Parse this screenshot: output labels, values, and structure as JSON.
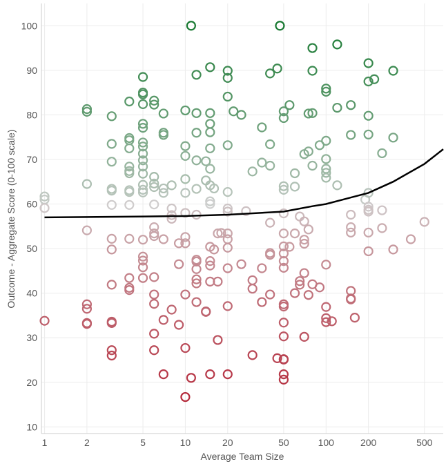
{
  "chart_data": {
    "type": "scatter",
    "xlabel": "Average Team Size",
    "ylabel": "Outcome - Aggregate Score (0-100 scale)",
    "x_scale": "log",
    "xlim": [
      0.95,
      680
    ],
    "ylim": [
      8.5,
      105
    ],
    "x_ticks": [
      1,
      2,
      5,
      10,
      20,
      50,
      100,
      200,
      500
    ],
    "y_ticks": [
      10,
      20,
      30,
      40,
      50,
      60,
      70,
      80,
      90,
      100
    ],
    "grid": true,
    "color_scale": {
      "low": "#b2182b",
      "mid": "#cfcfcf",
      "high": "#1a7a33",
      "mid_value": 60
    },
    "trend_line": {
      "color": "#000000",
      "points": [
        [
          1,
          57
        ],
        [
          5,
          57.2
        ],
        [
          10,
          57.3
        ],
        [
          20,
          57.6
        ],
        [
          50,
          58.3
        ],
        [
          80,
          59.5
        ],
        [
          100,
          60
        ],
        [
          200,
          62.5
        ],
        [
          300,
          65
        ],
        [
          500,
          69
        ],
        [
          680,
          72.3
        ]
      ]
    },
    "series": [
      {
        "points": [
          [
            1,
            61.7
          ],
          [
            1,
            61.0
          ],
          [
            1,
            59.1
          ],
          [
            1,
            33.8
          ],
          [
            2,
            81.3
          ],
          [
            2,
            80.7
          ],
          [
            2,
            64.5
          ],
          [
            2,
            54.1
          ],
          [
            2,
            37.5
          ],
          [
            2,
            36.5
          ],
          [
            2,
            33.3
          ],
          [
            2,
            33.1
          ],
          [
            3,
            79.7
          ],
          [
            3,
            73.5
          ],
          [
            3,
            69.5
          ],
          [
            3,
            63.4
          ],
          [
            3,
            63.0
          ],
          [
            3,
            59.8
          ],
          [
            3,
            52.2
          ],
          [
            3,
            49.8
          ],
          [
            3,
            41.9
          ],
          [
            3,
            33.6
          ],
          [
            3,
            33.3
          ],
          [
            3,
            27.2
          ],
          [
            3,
            26.0
          ],
          [
            4,
            83.0
          ],
          [
            4,
            74.8
          ],
          [
            4,
            74.3
          ],
          [
            4,
            72.5
          ],
          [
            4,
            68.4
          ],
          [
            4,
            67.4
          ],
          [
            4,
            66.9
          ],
          [
            4,
            63.1
          ],
          [
            4,
            62.7
          ],
          [
            4,
            59.8
          ],
          [
            4,
            52.2
          ],
          [
            4,
            43.4
          ],
          [
            4,
            41.2
          ],
          [
            4,
            40.7
          ],
          [
            5,
            88.5
          ],
          [
            5,
            85.0
          ],
          [
            5,
            84.6
          ],
          [
            5,
            82.4
          ],
          [
            5,
            78.0
          ],
          [
            5,
            77.1
          ],
          [
            5,
            73.8
          ],
          [
            5,
            72.9
          ],
          [
            5,
            71.3
          ],
          [
            5,
            69.8
          ],
          [
            5,
            68.4
          ],
          [
            5,
            66.8
          ],
          [
            5,
            64.3
          ],
          [
            5,
            63.2
          ],
          [
            5,
            62.6
          ],
          [
            5,
            52.0
          ],
          [
            5,
            48.2
          ],
          [
            5,
            47.3
          ],
          [
            5,
            45.8
          ],
          [
            5,
            43.4
          ],
          [
            6,
            83.2
          ],
          [
            6,
            82.3
          ],
          [
            6,
            66.1
          ],
          [
            6,
            64.6
          ],
          [
            6,
            63.8
          ],
          [
            6,
            59.9
          ],
          [
            6,
            54.8
          ],
          [
            6,
            53.4
          ],
          [
            6,
            52.8
          ],
          [
            6,
            43.6
          ],
          [
            6,
            39.7
          ],
          [
            6,
            37.6
          ],
          [
            6,
            30.9
          ],
          [
            6,
            27.2
          ],
          [
            7,
            80.3
          ],
          [
            7,
            76.0
          ],
          [
            7,
            75.5
          ],
          [
            7,
            63.5
          ],
          [
            7,
            62.5
          ],
          [
            7,
            52.1
          ],
          [
            7,
            34.0
          ],
          [
            7,
            21.8
          ],
          [
            8,
            64.2
          ],
          [
            8,
            59.0
          ],
          [
            8,
            57.5
          ],
          [
            8,
            56.7
          ],
          [
            8,
            36.3
          ],
          [
            9,
            51.2
          ],
          [
            9,
            46.5
          ],
          [
            9,
            32.9
          ],
          [
            10,
            81.0
          ],
          [
            10,
            73.0
          ],
          [
            10,
            70.8
          ],
          [
            10,
            65.6
          ],
          [
            10,
            62.5
          ],
          [
            10,
            58.0
          ],
          [
            10,
            52.6
          ],
          [
            10,
            51.2
          ],
          [
            10,
            39.7
          ],
          [
            10,
            27.7
          ],
          [
            10,
            16.7
          ],
          [
            11,
            100
          ],
          [
            11,
            21.0
          ],
          [
            12,
            89.0
          ],
          [
            12,
            80.4
          ],
          [
            12,
            76.0
          ],
          [
            12,
            69.8
          ],
          [
            12,
            63.4
          ],
          [
            12,
            57.6
          ],
          [
            12,
            47.5
          ],
          [
            12,
            47.1
          ],
          [
            12,
            45.4
          ],
          [
            12,
            43.1
          ],
          [
            12,
            42.2
          ],
          [
            12,
            38.0
          ],
          [
            14,
            69.6
          ],
          [
            14,
            65.3
          ],
          [
            14,
            35.9
          ],
          [
            14,
            35.8
          ],
          [
            15,
            90.7
          ],
          [
            15,
            80.4
          ],
          [
            15,
            78.0
          ],
          [
            15,
            76.1
          ],
          [
            15,
            72.5
          ],
          [
            15,
            67.9
          ],
          [
            15,
            64.2
          ],
          [
            15,
            60.6
          ],
          [
            15,
            60.0
          ],
          [
            15,
            50.4
          ],
          [
            15,
            47.2
          ],
          [
            15,
            46.2
          ],
          [
            15,
            42.6
          ],
          [
            15,
            21.8
          ],
          [
            16,
            63.5
          ],
          [
            16,
            49.8
          ],
          [
            17,
            53.4
          ],
          [
            17,
            42.6
          ],
          [
            17,
            29.5
          ],
          [
            18,
            53.5
          ],
          [
            20,
            89.9
          ],
          [
            20,
            88.3
          ],
          [
            20,
            84.1
          ],
          [
            20,
            73.2
          ],
          [
            20,
            62.7
          ],
          [
            20,
            59.0
          ],
          [
            20,
            58.3
          ],
          [
            20,
            53.4
          ],
          [
            20,
            52.1
          ],
          [
            20,
            50.2
          ],
          [
            20,
            45.6
          ],
          [
            20,
            37.1
          ],
          [
            20,
            21.8
          ],
          [
            22,
            80.8
          ],
          [
            25,
            80.0
          ],
          [
            25,
            46.5
          ],
          [
            27,
            58.4
          ],
          [
            30,
            67.3
          ],
          [
            30,
            42.9
          ],
          [
            30,
            41.0
          ],
          [
            30,
            26.1
          ],
          [
            35,
            77.2
          ],
          [
            35,
            69.3
          ],
          [
            35,
            45.6
          ],
          [
            35,
            38.0
          ],
          [
            40,
            89.3
          ],
          [
            40,
            73.4
          ],
          [
            40,
            68.6
          ],
          [
            40,
            55.8
          ],
          [
            40,
            49.0
          ],
          [
            40,
            48.6
          ],
          [
            40,
            39.7
          ],
          [
            45,
            90.4
          ],
          [
            45,
            25.4
          ],
          [
            47,
            100
          ],
          [
            50,
            80.8
          ],
          [
            50,
            79.3
          ],
          [
            50,
            64.0
          ],
          [
            50,
            63.2
          ],
          [
            50,
            57.9
          ],
          [
            50,
            53.4
          ],
          [
            50,
            50.5
          ],
          [
            50,
            48.9
          ],
          [
            50,
            47.2
          ],
          [
            50,
            45.7
          ],
          [
            50,
            37.5
          ],
          [
            50,
            37.0
          ],
          [
            50,
            33.4
          ],
          [
            50,
            30.3
          ],
          [
            50,
            25.2
          ],
          [
            50,
            25.1
          ],
          [
            50,
            21.8
          ],
          [
            50,
            20.6
          ],
          [
            55,
            82.2
          ],
          [
            55,
            50.4
          ],
          [
            60,
            66.9
          ],
          [
            60,
            63.9
          ],
          [
            60,
            53.4
          ],
          [
            60,
            40.0
          ],
          [
            65,
            57.2
          ],
          [
            65,
            42.7
          ],
          [
            65,
            41.9
          ],
          [
            70,
            71.2
          ],
          [
            70,
            56.1
          ],
          [
            70,
            52.0
          ],
          [
            70,
            51.1
          ],
          [
            70,
            44.5
          ],
          [
            70,
            30.2
          ],
          [
            75,
            80.3
          ],
          [
            75,
            71.8
          ],
          [
            75,
            54.3
          ],
          [
            75,
            39.6
          ],
          [
            80,
            95.0
          ],
          [
            80,
            89.9
          ],
          [
            80,
            80.4
          ],
          [
            80,
            68.6
          ],
          [
            80,
            42.0
          ],
          [
            90,
            73.2
          ],
          [
            90,
            41.3
          ],
          [
            100,
            85.9
          ],
          [
            100,
            85.2
          ],
          [
            100,
            74.2
          ],
          [
            100,
            70.1
          ],
          [
            100,
            67.9
          ],
          [
            100,
            67.0
          ],
          [
            100,
            65.9
          ],
          [
            100,
            46.4
          ],
          [
            100,
            36.9
          ],
          [
            100,
            34.4
          ],
          [
            100,
            33.5
          ],
          [
            110,
            33.7
          ],
          [
            120,
            95.8
          ],
          [
            120,
            81.6
          ],
          [
            120,
            64.2
          ],
          [
            150,
            82.2
          ],
          [
            150,
            75.5
          ],
          [
            150,
            57.6
          ],
          [
            150,
            54.8
          ],
          [
            150,
            53.6
          ],
          [
            150,
            40.5
          ],
          [
            150,
            38.8
          ],
          [
            150,
            38.6
          ],
          [
            160,
            34.5
          ],
          [
            190,
            61.0
          ],
          [
            200,
            91.6
          ],
          [
            200,
            87.5
          ],
          [
            200,
            79.8
          ],
          [
            200,
            75.6
          ],
          [
            200,
            62.5
          ],
          [
            200,
            59.4
          ],
          [
            200,
            58.7
          ],
          [
            200,
            58.3
          ],
          [
            200,
            53.6
          ],
          [
            200,
            49.4
          ],
          [
            220,
            88.0
          ],
          [
            250,
            71.4
          ],
          [
            250,
            58.6
          ],
          [
            250,
            54.6
          ],
          [
            300,
            89.9
          ],
          [
            300,
            74.9
          ],
          [
            300,
            49.8
          ],
          [
            400,
            52.1
          ],
          [
            500,
            56.0
          ]
        ]
      }
    ]
  }
}
